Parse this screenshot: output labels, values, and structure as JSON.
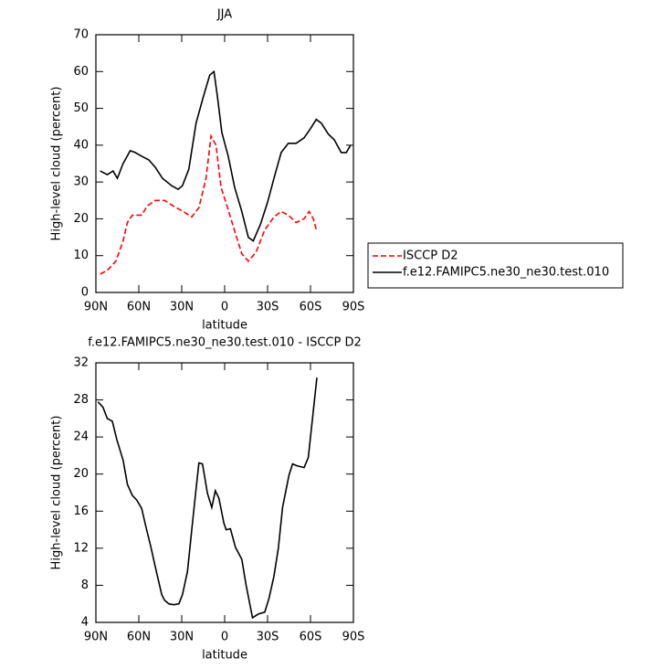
{
  "chart_data": [
    {
      "type": "line",
      "title": "JJA",
      "xlabel": "latitude",
      "ylabel": "High-level cloud (percent)",
      "xlim": [
        90,
        -90
      ],
      "xticks": [
        {
          "value": 90,
          "label": "90N"
        },
        {
          "value": 60,
          "label": "60N"
        },
        {
          "value": 30,
          "label": "30N"
        },
        0,
        {
          "value": -30,
          "label": "30S"
        },
        {
          "value": -60,
          "label": "60S"
        },
        {
          "value": -90,
          "label": "90S"
        }
      ],
      "ylim": [
        0,
        70
      ],
      "yticks": [
        0,
        10,
        20,
        30,
        40,
        50,
        60,
        70
      ],
      "series": [
        {
          "name": "ISCCP D2",
          "color": "#ff0000",
          "dash": true,
          "x": [
            87,
            82,
            76,
            71,
            68,
            64.5,
            58,
            54,
            48.5,
            42,
            36,
            29,
            23,
            18,
            13,
            9.5,
            6,
            2.5,
            -2.5,
            -7.5,
            -12,
            -16.5,
            -22,
            -28,
            -34.5,
            -39.5,
            -44.5,
            -50,
            -55.5,
            -59,
            -62,
            -64.5
          ],
          "values": [
            5,
            6,
            8.5,
            14,
            19,
            21,
            21,
            23.5,
            25,
            25,
            23.5,
            22,
            20.5,
            23,
            31,
            42.5,
            40,
            28.5,
            22.5,
            16,
            10.5,
            8.5,
            11,
            17,
            20.5,
            22,
            21,
            19,
            20,
            22,
            20,
            16.5
          ]
        },
        {
          "name": "f.e12.FAMIPC5.ne30_ne30.test.010",
          "color": "#000000",
          "dash": false,
          "x": [
            87,
            82,
            78,
            75,
            71,
            66,
            62.5,
            58,
            53,
            48.5,
            43.5,
            37,
            32.5,
            29.5,
            25,
            20,
            15,
            10.5,
            7.5,
            5,
            2,
            -2.5,
            -7,
            -12,
            -16.5,
            -20,
            -25,
            -30,
            -34.5,
            -39.5,
            -44.5,
            -50,
            -55.5,
            -60,
            -64,
            -67.5,
            -72.5,
            -76.5,
            -81.5,
            -85,
            -88
          ],
          "values": [
            33,
            32,
            33,
            31,
            35,
            38.5,
            38,
            37,
            36,
            34,
            31,
            29,
            28,
            29,
            33.5,
            46,
            53,
            59,
            60,
            53,
            43.5,
            37,
            28.5,
            22,
            15,
            14,
            18.5,
            24.5,
            31,
            38,
            40.5,
            40.5,
            42,
            44.5,
            47,
            46,
            43,
            41.5,
            38,
            38,
            40
          ]
        }
      ]
    },
    {
      "type": "line",
      "title": "f.e12.FAMIPC5.ne30_ne30.test.010 - ISCCP D2",
      "xlabel": "latitude",
      "ylabel": "High-level cloud (percent)",
      "xlim": [
        90,
        -90
      ],
      "xticks": [
        {
          "value": 90,
          "label": "90N"
        },
        {
          "value": 60,
          "label": "60N"
        },
        {
          "value": 30,
          "label": "30N"
        },
        0,
        {
          "value": -30,
          "label": "30S"
        },
        {
          "value": -60,
          "label": "60S"
        },
        {
          "value": -90,
          "label": "90S"
        }
      ],
      "ylim": [
        4,
        32
      ],
      "yticks": [
        4,
        8,
        12,
        16,
        20,
        24,
        28,
        32
      ],
      "series": [
        {
          "color": "#000000",
          "dash": false,
          "x": [
            88.5,
            85,
            82,
            78.5,
            75.5,
            71,
            68,
            64.5,
            61.5,
            58,
            55,
            51.5,
            48.5,
            44,
            42,
            39,
            35.5,
            32,
            29.5,
            26,
            23,
            20,
            18,
            15.5,
            12,
            9,
            6.5,
            4,
            0.5,
            -1,
            -4,
            -7.5,
            -12,
            -15,
            -19.5,
            -23.5,
            -28,
            -31,
            -34.5,
            -37.5,
            -40.5,
            -45,
            -47.5,
            -50.5,
            -55.5,
            -58.5,
            -64.5
          ],
          "values": [
            27.8,
            27.2,
            26,
            25.7,
            23.8,
            21.5,
            18.9,
            17.7,
            17.2,
            16.3,
            14.3,
            12.1,
            10,
            7,
            6.4,
            6,
            5.9,
            6,
            7,
            9.5,
            14,
            18.4,
            21.2,
            21.1,
            17.9,
            16.4,
            18.2,
            17.4,
            14.7,
            14,
            14.1,
            12.1,
            10.8,
            8,
            4.5,
            4.9,
            5.1,
            6.6,
            9,
            12,
            16.4,
            19.9,
            21.1,
            20.9,
            20.7,
            21.8,
            30.4
          ]
        }
      ]
    }
  ]
}
